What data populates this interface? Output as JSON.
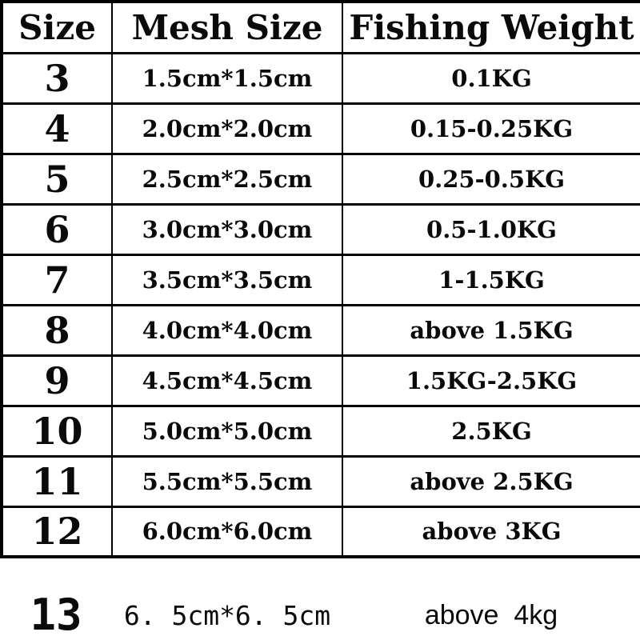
{
  "colors": {
    "background": "#ffffff",
    "border": "#000000",
    "text": "#0a0a0a"
  },
  "table": {
    "headers": [
      "Size",
      "Mesh Size",
      "Fishing Weight"
    ],
    "rows": [
      {
        "size": "3",
        "mesh": "1.5cm*1.5cm",
        "weight": "0.1KG"
      },
      {
        "size": "4",
        "mesh": "2.0cm*2.0cm",
        "weight": "0.15-0.25KG"
      },
      {
        "size": "5",
        "mesh": "2.5cm*2.5cm",
        "weight": "0.25-0.5KG"
      },
      {
        "size": "6",
        "mesh": "3.0cm*3.0cm",
        "weight": "0.5-1.0KG"
      },
      {
        "size": "7",
        "mesh": "3.5cm*3.5cm",
        "weight": "1-1.5KG"
      },
      {
        "size": "8",
        "mesh": "4.0cm*4.0cm",
        "weight": "above 1.5KG"
      },
      {
        "size": "9",
        "mesh": "4.5cm*4.5cm",
        "weight": "1.5KG-2.5KG"
      },
      {
        "size": "10",
        "mesh": "5.0cm*5.0cm",
        "weight": "2.5KG"
      },
      {
        "size": "11",
        "mesh": "5.5cm*5.5cm",
        "weight": "above 2.5KG"
      },
      {
        "size": "12",
        "mesh": "6.0cm*6.0cm",
        "weight": "above 3KG"
      }
    ],
    "footer_row": {
      "size": "13",
      "mesh": "6. 5cm*6. 5cm",
      "weight": "above  4kg"
    }
  }
}
